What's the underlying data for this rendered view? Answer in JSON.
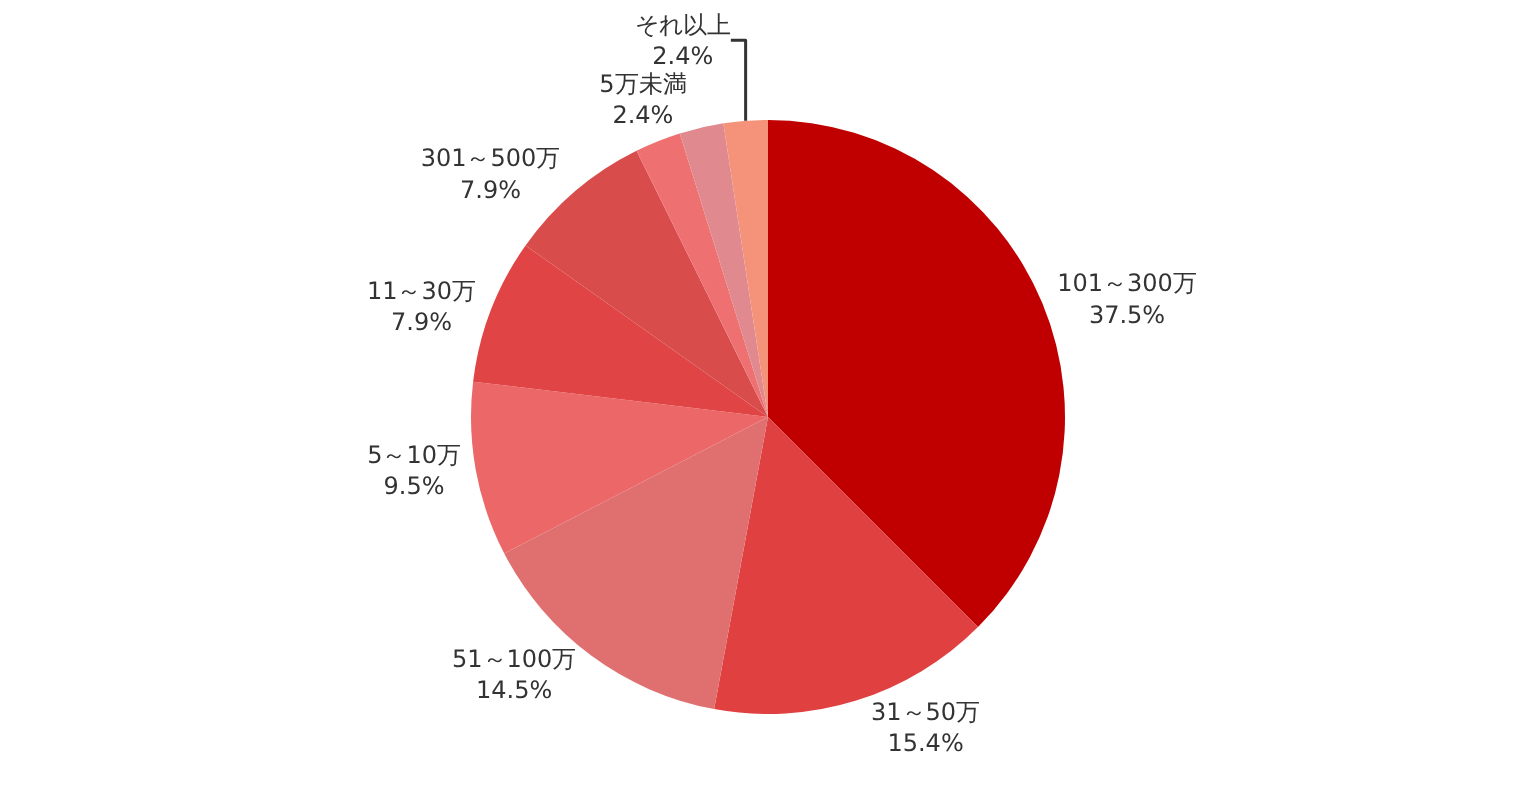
{
  "chart_data": {
    "type": "pie",
    "categories": [
      "101～300万",
      "31～50万",
      "51～100万",
      "5～10万",
      "11～30万",
      "301～500万",
      null,
      "5万未満",
      "それ以上"
    ],
    "values": [
      37.5,
      15.4,
      14.5,
      9.5,
      7.9,
      7.9,
      2.5,
      2.4,
      2.4
    ],
    "value_labels": [
      "37.5%",
      "15.4%",
      "14.5%",
      "9.5%",
      "7.9%",
      "7.9%",
      null,
      "2.4%",
      "2.4%"
    ],
    "colors": [
      "#c00000",
      "#e04040",
      "#e07070",
      "#ec6868",
      "#e04444",
      "#d84c4c",
      "#ee7070",
      "#e08a90",
      "#f5937a"
    ],
    "legend": false
  }
}
